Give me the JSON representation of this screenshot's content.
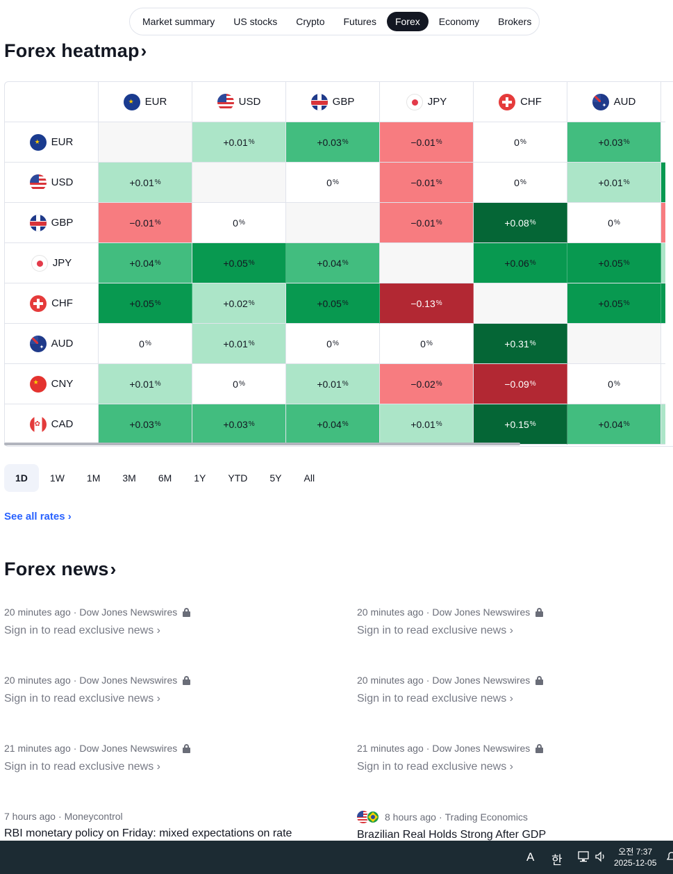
{
  "nav": {
    "items": [
      "Market summary",
      "US stocks",
      "Crypto",
      "Futures",
      "Forex",
      "Economy",
      "Brokers"
    ],
    "active": "Forex"
  },
  "heatmap_title": "Forex heatmap",
  "heatmap": {
    "columns": [
      "EUR",
      "USD",
      "GBP",
      "JPY",
      "CHF",
      "AUD"
    ],
    "rows": [
      {
        "cur": "EUR",
        "cells": [
          null,
          "+0.01",
          "+0.03",
          "−0.01",
          "0",
          "+0.03"
        ],
        "edge": ""
      },
      {
        "cur": "USD",
        "cells": [
          "+0.01",
          null,
          "0",
          "−0.01",
          "0",
          "+0.01"
        ],
        "edge": "pos3"
      },
      {
        "cur": "GBP",
        "cells": [
          "−0.01",
          "0",
          null,
          "−0.01",
          "+0.08",
          "0"
        ],
        "edge": "neg1"
      },
      {
        "cur": "JPY",
        "cells": [
          "+0.04",
          "+0.05",
          "+0.04",
          null,
          "+0.06",
          "+0.05"
        ],
        "edge": "pos1"
      },
      {
        "cur": "CHF",
        "cells": [
          "+0.05",
          "+0.02",
          "+0.05",
          "−0.13",
          null,
          "+0.05"
        ],
        "edge": "pos3"
      },
      {
        "cur": "AUD",
        "cells": [
          "0",
          "+0.01",
          "0",
          "0",
          "+0.31",
          null
        ],
        "edge": ""
      },
      {
        "cur": "CNY",
        "cells": [
          "+0.01",
          "0",
          "+0.01",
          "−0.02",
          "−0.09",
          "0"
        ],
        "edge": ""
      },
      {
        "cur": "CAD",
        "cells": [
          "+0.03",
          "+0.03",
          "+0.04",
          "+0.01",
          "+0.15",
          "+0.04"
        ],
        "edge": "pos1"
      }
    ],
    "levels": {
      "EUR": [
        "na",
        "pos1",
        "pos2",
        "neg1",
        "neutral",
        "pos2"
      ],
      "USD": [
        "pos1",
        "na",
        "neutral",
        "neg1",
        "neutral",
        "pos1"
      ],
      "GBP": [
        "neg1",
        "neutral",
        "na",
        "neg1",
        "pos4",
        "neutral"
      ],
      "JPY": [
        "pos2",
        "pos3",
        "pos2",
        "na",
        "pos3",
        "pos3"
      ],
      "CHF": [
        "pos3",
        "pos1",
        "pos3",
        "neg3",
        "na",
        "pos3"
      ],
      "AUD": [
        "neutral",
        "pos1",
        "neutral",
        "neutral",
        "pos4",
        "na"
      ],
      "CNY": [
        "pos1",
        "neutral",
        "pos1",
        "neg1",
        "neg3",
        "neutral"
      ],
      "CAD": [
        "pos2",
        "pos2",
        "pos2",
        "pos1",
        "pos4",
        "pos2"
      ]
    },
    "colors": {
      "na": "#f7f7f7",
      "neutral": "#ffffff",
      "pos1": "#ace5c8",
      "pos2": "#42bd7f",
      "pos3": "#089950",
      "pos4": "#056636",
      "neg1": "#f77c80",
      "neg3": "#b22833"
    },
    "pct_symbol": "%"
  },
  "periods": [
    "1D",
    "1W",
    "1M",
    "3M",
    "6M",
    "1Y",
    "YTD",
    "5Y",
    "All"
  ],
  "active_period": "1D",
  "see_all": "See all rates",
  "news_title": "Forex news",
  "news": [
    {
      "time": "20 minutes ago",
      "source": "Dow Jones Newswires",
      "locked": true,
      "title": "Sign in to read exclusive news"
    },
    {
      "time": "20 minutes ago",
      "source": "Dow Jones Newswires",
      "locked": true,
      "title": "Sign in to read exclusive news"
    },
    {
      "time": "20 minutes ago",
      "source": "Dow Jones Newswires",
      "locked": true,
      "title": "Sign in to read exclusive news"
    },
    {
      "time": "20 minutes ago",
      "source": "Dow Jones Newswires",
      "locked": true,
      "title": "Sign in to read exclusive news"
    },
    {
      "time": "21 minutes ago",
      "source": "Dow Jones Newswires",
      "locked": true,
      "title": "Sign in to read exclusive news"
    },
    {
      "time": "21 minutes ago",
      "source": "Dow Jones Newswires",
      "locked": true,
      "title": "Sign in to read exclusive news"
    },
    {
      "time": "7 hours ago",
      "source": "Moneycontrol",
      "locked": false,
      "title": "RBI monetary policy on Friday: mixed expectations on rate"
    },
    {
      "time": "8 hours ago",
      "source": "Trading Economics",
      "locked": false,
      "title": "Brazilian Real Holds Strong After GDP",
      "flags": [
        "us",
        "br"
      ]
    }
  ],
  "taskbar": {
    "ime_a": "A",
    "ime_han": "한",
    "time": "오전 7:37",
    "date": "2025-12-05"
  }
}
